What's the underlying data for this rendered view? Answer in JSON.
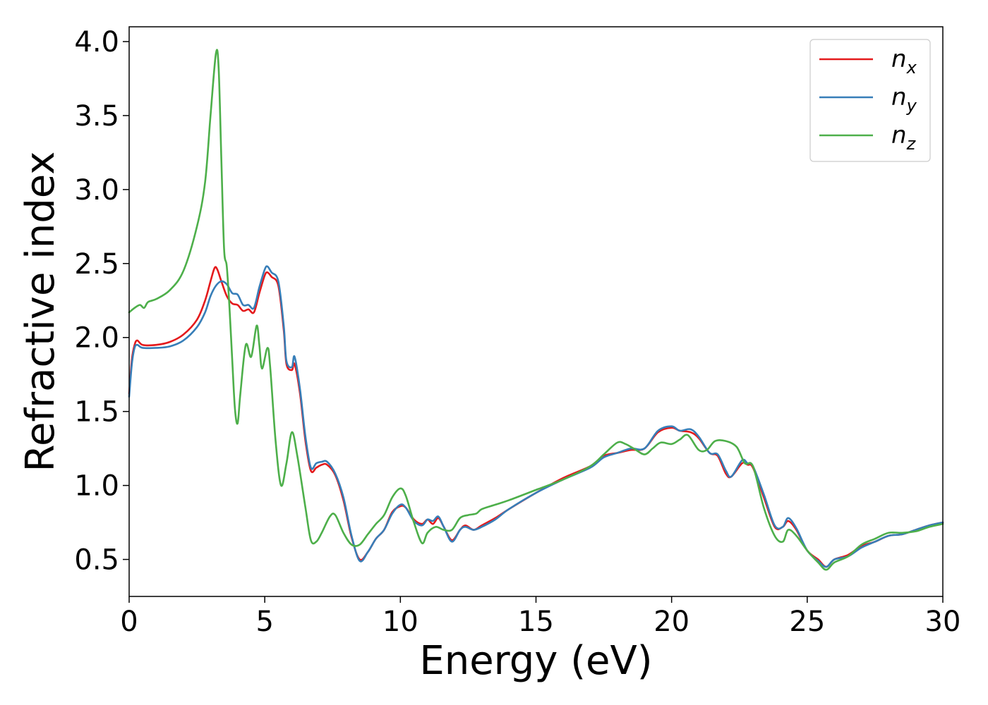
{
  "chart_data": {
    "type": "line",
    "xlabel": "Energy (eV)",
    "ylabel": "Refractive index",
    "xlim": [
      0,
      30
    ],
    "ylim": [
      0.25,
      4.1
    ],
    "x_ticks": [
      0,
      5,
      10,
      15,
      20,
      25,
      30
    ],
    "x_tick_labels": [
      "0",
      "5",
      "10",
      "15",
      "20",
      "25",
      "30"
    ],
    "y_ticks": [
      0.5,
      1.0,
      1.5,
      2.0,
      2.5,
      3.0,
      3.5,
      4.0
    ],
    "y_tick_labels": [
      "0.5",
      "1.0",
      "1.5",
      "2.0",
      "2.5",
      "3.0",
      "3.5",
      "4.0"
    ],
    "grid": false,
    "legend_position": "top-right",
    "series": [
      {
        "name": "n_x",
        "label_main": "n",
        "label_sub": "x",
        "color": "#e41a1c",
        "points": [
          [
            0,
            1.62
          ],
          [
            0.1,
            1.85
          ],
          [
            0.2,
            1.95
          ],
          [
            0.3,
            1.98
          ],
          [
            0.5,
            1.95
          ],
          [
            1,
            1.95
          ],
          [
            1.5,
            1.97
          ],
          [
            2,
            2.02
          ],
          [
            2.5,
            2.12
          ],
          [
            2.8,
            2.25
          ],
          [
            3.0,
            2.38
          ],
          [
            3.15,
            2.47
          ],
          [
            3.25,
            2.46
          ],
          [
            3.4,
            2.38
          ],
          [
            3.6,
            2.28
          ],
          [
            3.8,
            2.23
          ],
          [
            4.0,
            2.22
          ],
          [
            4.2,
            2.18
          ],
          [
            4.4,
            2.19
          ],
          [
            4.6,
            2.17
          ],
          [
            4.8,
            2.3
          ],
          [
            5.0,
            2.42
          ],
          [
            5.1,
            2.44
          ],
          [
            5.25,
            2.41
          ],
          [
            5.5,
            2.35
          ],
          [
            5.7,
            2.05
          ],
          [
            5.8,
            1.82
          ],
          [
            6.0,
            1.78
          ],
          [
            6.1,
            1.82
          ],
          [
            6.3,
            1.62
          ],
          [
            6.5,
            1.3
          ],
          [
            6.7,
            1.1
          ],
          [
            6.9,
            1.12
          ],
          [
            7.1,
            1.14
          ],
          [
            7.3,
            1.14
          ],
          [
            7.6,
            1.07
          ],
          [
            7.9,
            0.9
          ],
          [
            8.2,
            0.65
          ],
          [
            8.5,
            0.5
          ],
          [
            8.8,
            0.55
          ],
          [
            9.1,
            0.64
          ],
          [
            9.4,
            0.7
          ],
          [
            9.7,
            0.82
          ],
          [
            10.0,
            0.86
          ],
          [
            10.2,
            0.85
          ],
          [
            10.5,
            0.77
          ],
          [
            10.8,
            0.74
          ],
          [
            11.0,
            0.77
          ],
          [
            11.2,
            0.74
          ],
          [
            11.4,
            0.78
          ],
          [
            11.6,
            0.72
          ],
          [
            11.9,
            0.63
          ],
          [
            12.2,
            0.7
          ],
          [
            12.4,
            0.73
          ],
          [
            12.7,
            0.7
          ],
          [
            13.0,
            0.73
          ],
          [
            13.5,
            0.78
          ],
          [
            14,
            0.84
          ],
          [
            15,
            0.95
          ],
          [
            16,
            1.05
          ],
          [
            17,
            1.13
          ],
          [
            17.5,
            1.2
          ],
          [
            18,
            1.22
          ],
          [
            18.5,
            1.24
          ],
          [
            19,
            1.25
          ],
          [
            19.5,
            1.36
          ],
          [
            20,
            1.39
          ],
          [
            20.3,
            1.37
          ],
          [
            20.7,
            1.36
          ],
          [
            21,
            1.32
          ],
          [
            21.4,
            1.22
          ],
          [
            21.7,
            1.2
          ],
          [
            22,
            1.08
          ],
          [
            22.2,
            1.06
          ],
          [
            22.6,
            1.15
          ],
          [
            22.8,
            1.14
          ],
          [
            23.0,
            1.12
          ],
          [
            23.4,
            0.92
          ],
          [
            23.8,
            0.72
          ],
          [
            24.1,
            0.72
          ],
          [
            24.3,
            0.76
          ],
          [
            24.6,
            0.7
          ],
          [
            25.0,
            0.56
          ],
          [
            25.4,
            0.5
          ],
          [
            25.7,
            0.45
          ],
          [
            26.0,
            0.5
          ],
          [
            26.5,
            0.53
          ],
          [
            27,
            0.59
          ],
          [
            27.5,
            0.62
          ],
          [
            28,
            0.66
          ],
          [
            28.5,
            0.67
          ],
          [
            29,
            0.7
          ],
          [
            29.5,
            0.73
          ],
          [
            30,
            0.75
          ]
        ]
      },
      {
        "name": "n_y",
        "label_main": "n",
        "label_sub": "y",
        "color": "#377eb8",
        "points": [
          [
            0,
            1.6
          ],
          [
            0.1,
            1.82
          ],
          [
            0.2,
            1.93
          ],
          [
            0.3,
            1.95
          ],
          [
            0.5,
            1.93
          ],
          [
            1,
            1.93
          ],
          [
            1.5,
            1.94
          ],
          [
            2,
            1.98
          ],
          [
            2.5,
            2.07
          ],
          [
            2.8,
            2.17
          ],
          [
            3.0,
            2.28
          ],
          [
            3.2,
            2.35
          ],
          [
            3.4,
            2.38
          ],
          [
            3.6,
            2.36
          ],
          [
            3.8,
            2.3
          ],
          [
            4.0,
            2.29
          ],
          [
            4.2,
            2.22
          ],
          [
            4.4,
            2.22
          ],
          [
            4.6,
            2.2
          ],
          [
            4.8,
            2.34
          ],
          [
            5.0,
            2.46
          ],
          [
            5.1,
            2.48
          ],
          [
            5.25,
            2.44
          ],
          [
            5.5,
            2.38
          ],
          [
            5.7,
            2.08
          ],
          [
            5.8,
            1.84
          ],
          [
            6.0,
            1.8
          ],
          [
            6.1,
            1.87
          ],
          [
            6.3,
            1.65
          ],
          [
            6.5,
            1.33
          ],
          [
            6.7,
            1.12
          ],
          [
            6.9,
            1.15
          ],
          [
            7.1,
            1.16
          ],
          [
            7.3,
            1.16
          ],
          [
            7.6,
            1.08
          ],
          [
            7.9,
            0.92
          ],
          [
            8.2,
            0.66
          ],
          [
            8.5,
            0.49
          ],
          [
            8.8,
            0.55
          ],
          [
            9.1,
            0.64
          ],
          [
            9.4,
            0.7
          ],
          [
            9.7,
            0.81
          ],
          [
            10.0,
            0.87
          ],
          [
            10.2,
            0.85
          ],
          [
            10.5,
            0.76
          ],
          [
            10.8,
            0.73
          ],
          [
            11.0,
            0.77
          ],
          [
            11.2,
            0.76
          ],
          [
            11.4,
            0.79
          ],
          [
            11.6,
            0.72
          ],
          [
            11.9,
            0.62
          ],
          [
            12.2,
            0.7
          ],
          [
            12.4,
            0.72
          ],
          [
            12.7,
            0.7
          ],
          [
            13.0,
            0.72
          ],
          [
            13.5,
            0.77
          ],
          [
            14,
            0.84
          ],
          [
            15,
            0.95
          ],
          [
            16,
            1.04
          ],
          [
            17,
            1.12
          ],
          [
            17.5,
            1.19
          ],
          [
            18,
            1.22
          ],
          [
            18.5,
            1.25
          ],
          [
            19,
            1.25
          ],
          [
            19.5,
            1.37
          ],
          [
            20,
            1.4
          ],
          [
            20.3,
            1.37
          ],
          [
            20.7,
            1.38
          ],
          [
            21,
            1.33
          ],
          [
            21.4,
            1.22
          ],
          [
            21.7,
            1.21
          ],
          [
            22,
            1.1
          ],
          [
            22.2,
            1.06
          ],
          [
            22.6,
            1.17
          ],
          [
            22.8,
            1.15
          ],
          [
            23.0,
            1.13
          ],
          [
            23.4,
            0.94
          ],
          [
            23.8,
            0.73
          ],
          [
            24.1,
            0.72
          ],
          [
            24.3,
            0.78
          ],
          [
            24.6,
            0.71
          ],
          [
            25.0,
            0.56
          ],
          [
            25.4,
            0.49
          ],
          [
            25.7,
            0.45
          ],
          [
            26.0,
            0.5
          ],
          [
            26.5,
            0.52
          ],
          [
            27,
            0.58
          ],
          [
            27.5,
            0.62
          ],
          [
            28,
            0.66
          ],
          [
            28.5,
            0.67
          ],
          [
            29,
            0.7
          ],
          [
            29.5,
            0.73
          ],
          [
            30,
            0.75
          ]
        ]
      },
      {
        "name": "n_z",
        "label_main": "n",
        "label_sub": "z",
        "color": "#4daf4a",
        "points": [
          [
            0,
            2.17
          ],
          [
            0.2,
            2.2
          ],
          [
            0.4,
            2.22
          ],
          [
            0.55,
            2.2
          ],
          [
            0.7,
            2.24
          ],
          [
            1.0,
            2.26
          ],
          [
            1.5,
            2.32
          ],
          [
            2.0,
            2.45
          ],
          [
            2.5,
            2.75
          ],
          [
            2.8,
            3.05
          ],
          [
            3.0,
            3.5
          ],
          [
            3.2,
            3.92
          ],
          [
            3.3,
            3.82
          ],
          [
            3.4,
            3.2
          ],
          [
            3.5,
            2.6
          ],
          [
            3.6,
            2.48
          ],
          [
            3.7,
            2.2
          ],
          [
            3.8,
            1.85
          ],
          [
            3.9,
            1.52
          ],
          [
            4.0,
            1.42
          ],
          [
            4.1,
            1.62
          ],
          [
            4.3,
            1.95
          ],
          [
            4.5,
            1.87
          ],
          [
            4.7,
            2.08
          ],
          [
            4.8,
            1.95
          ],
          [
            4.9,
            1.79
          ],
          [
            5.1,
            1.93
          ],
          [
            5.2,
            1.8
          ],
          [
            5.4,
            1.3
          ],
          [
            5.6,
            1.0
          ],
          [
            5.8,
            1.15
          ],
          [
            6.0,
            1.36
          ],
          [
            6.2,
            1.2
          ],
          [
            6.5,
            0.85
          ],
          [
            6.7,
            0.63
          ],
          [
            6.9,
            0.62
          ],
          [
            7.1,
            0.68
          ],
          [
            7.4,
            0.79
          ],
          [
            7.6,
            0.8
          ],
          [
            7.9,
            0.68
          ],
          [
            8.2,
            0.6
          ],
          [
            8.5,
            0.6
          ],
          [
            8.8,
            0.67
          ],
          [
            9.1,
            0.74
          ],
          [
            9.4,
            0.8
          ],
          [
            9.7,
            0.92
          ],
          [
            10.0,
            0.98
          ],
          [
            10.2,
            0.93
          ],
          [
            10.5,
            0.75
          ],
          [
            10.8,
            0.61
          ],
          [
            11.0,
            0.68
          ],
          [
            11.3,
            0.72
          ],
          [
            11.6,
            0.7
          ],
          [
            11.9,
            0.7
          ],
          [
            12.2,
            0.78
          ],
          [
            12.5,
            0.8
          ],
          [
            12.8,
            0.81
          ],
          [
            13.0,
            0.84
          ],
          [
            13.5,
            0.87
          ],
          [
            14,
            0.9
          ],
          [
            15,
            0.97
          ],
          [
            16,
            1.04
          ],
          [
            17,
            1.13
          ],
          [
            17.5,
            1.21
          ],
          [
            18,
            1.29
          ],
          [
            18.3,
            1.28
          ],
          [
            18.6,
            1.25
          ],
          [
            19,
            1.21
          ],
          [
            19.3,
            1.25
          ],
          [
            19.6,
            1.29
          ],
          [
            20,
            1.28
          ],
          [
            20.3,
            1.31
          ],
          [
            20.6,
            1.34
          ],
          [
            21,
            1.24
          ],
          [
            21.3,
            1.24
          ],
          [
            21.6,
            1.3
          ],
          [
            22.0,
            1.3
          ],
          [
            22.4,
            1.26
          ],
          [
            22.7,
            1.15
          ],
          [
            23.0,
            1.13
          ],
          [
            23.4,
            0.85
          ],
          [
            23.8,
            0.66
          ],
          [
            24.1,
            0.62
          ],
          [
            24.3,
            0.7
          ],
          [
            24.6,
            0.66
          ],
          [
            25.0,
            0.56
          ],
          [
            25.4,
            0.48
          ],
          [
            25.7,
            0.43
          ],
          [
            26.0,
            0.48
          ],
          [
            26.5,
            0.52
          ],
          [
            27,
            0.6
          ],
          [
            27.5,
            0.64
          ],
          [
            28,
            0.68
          ],
          [
            28.5,
            0.68
          ],
          [
            29,
            0.69
          ],
          [
            29.5,
            0.72
          ],
          [
            30,
            0.74
          ]
        ]
      }
    ]
  }
}
